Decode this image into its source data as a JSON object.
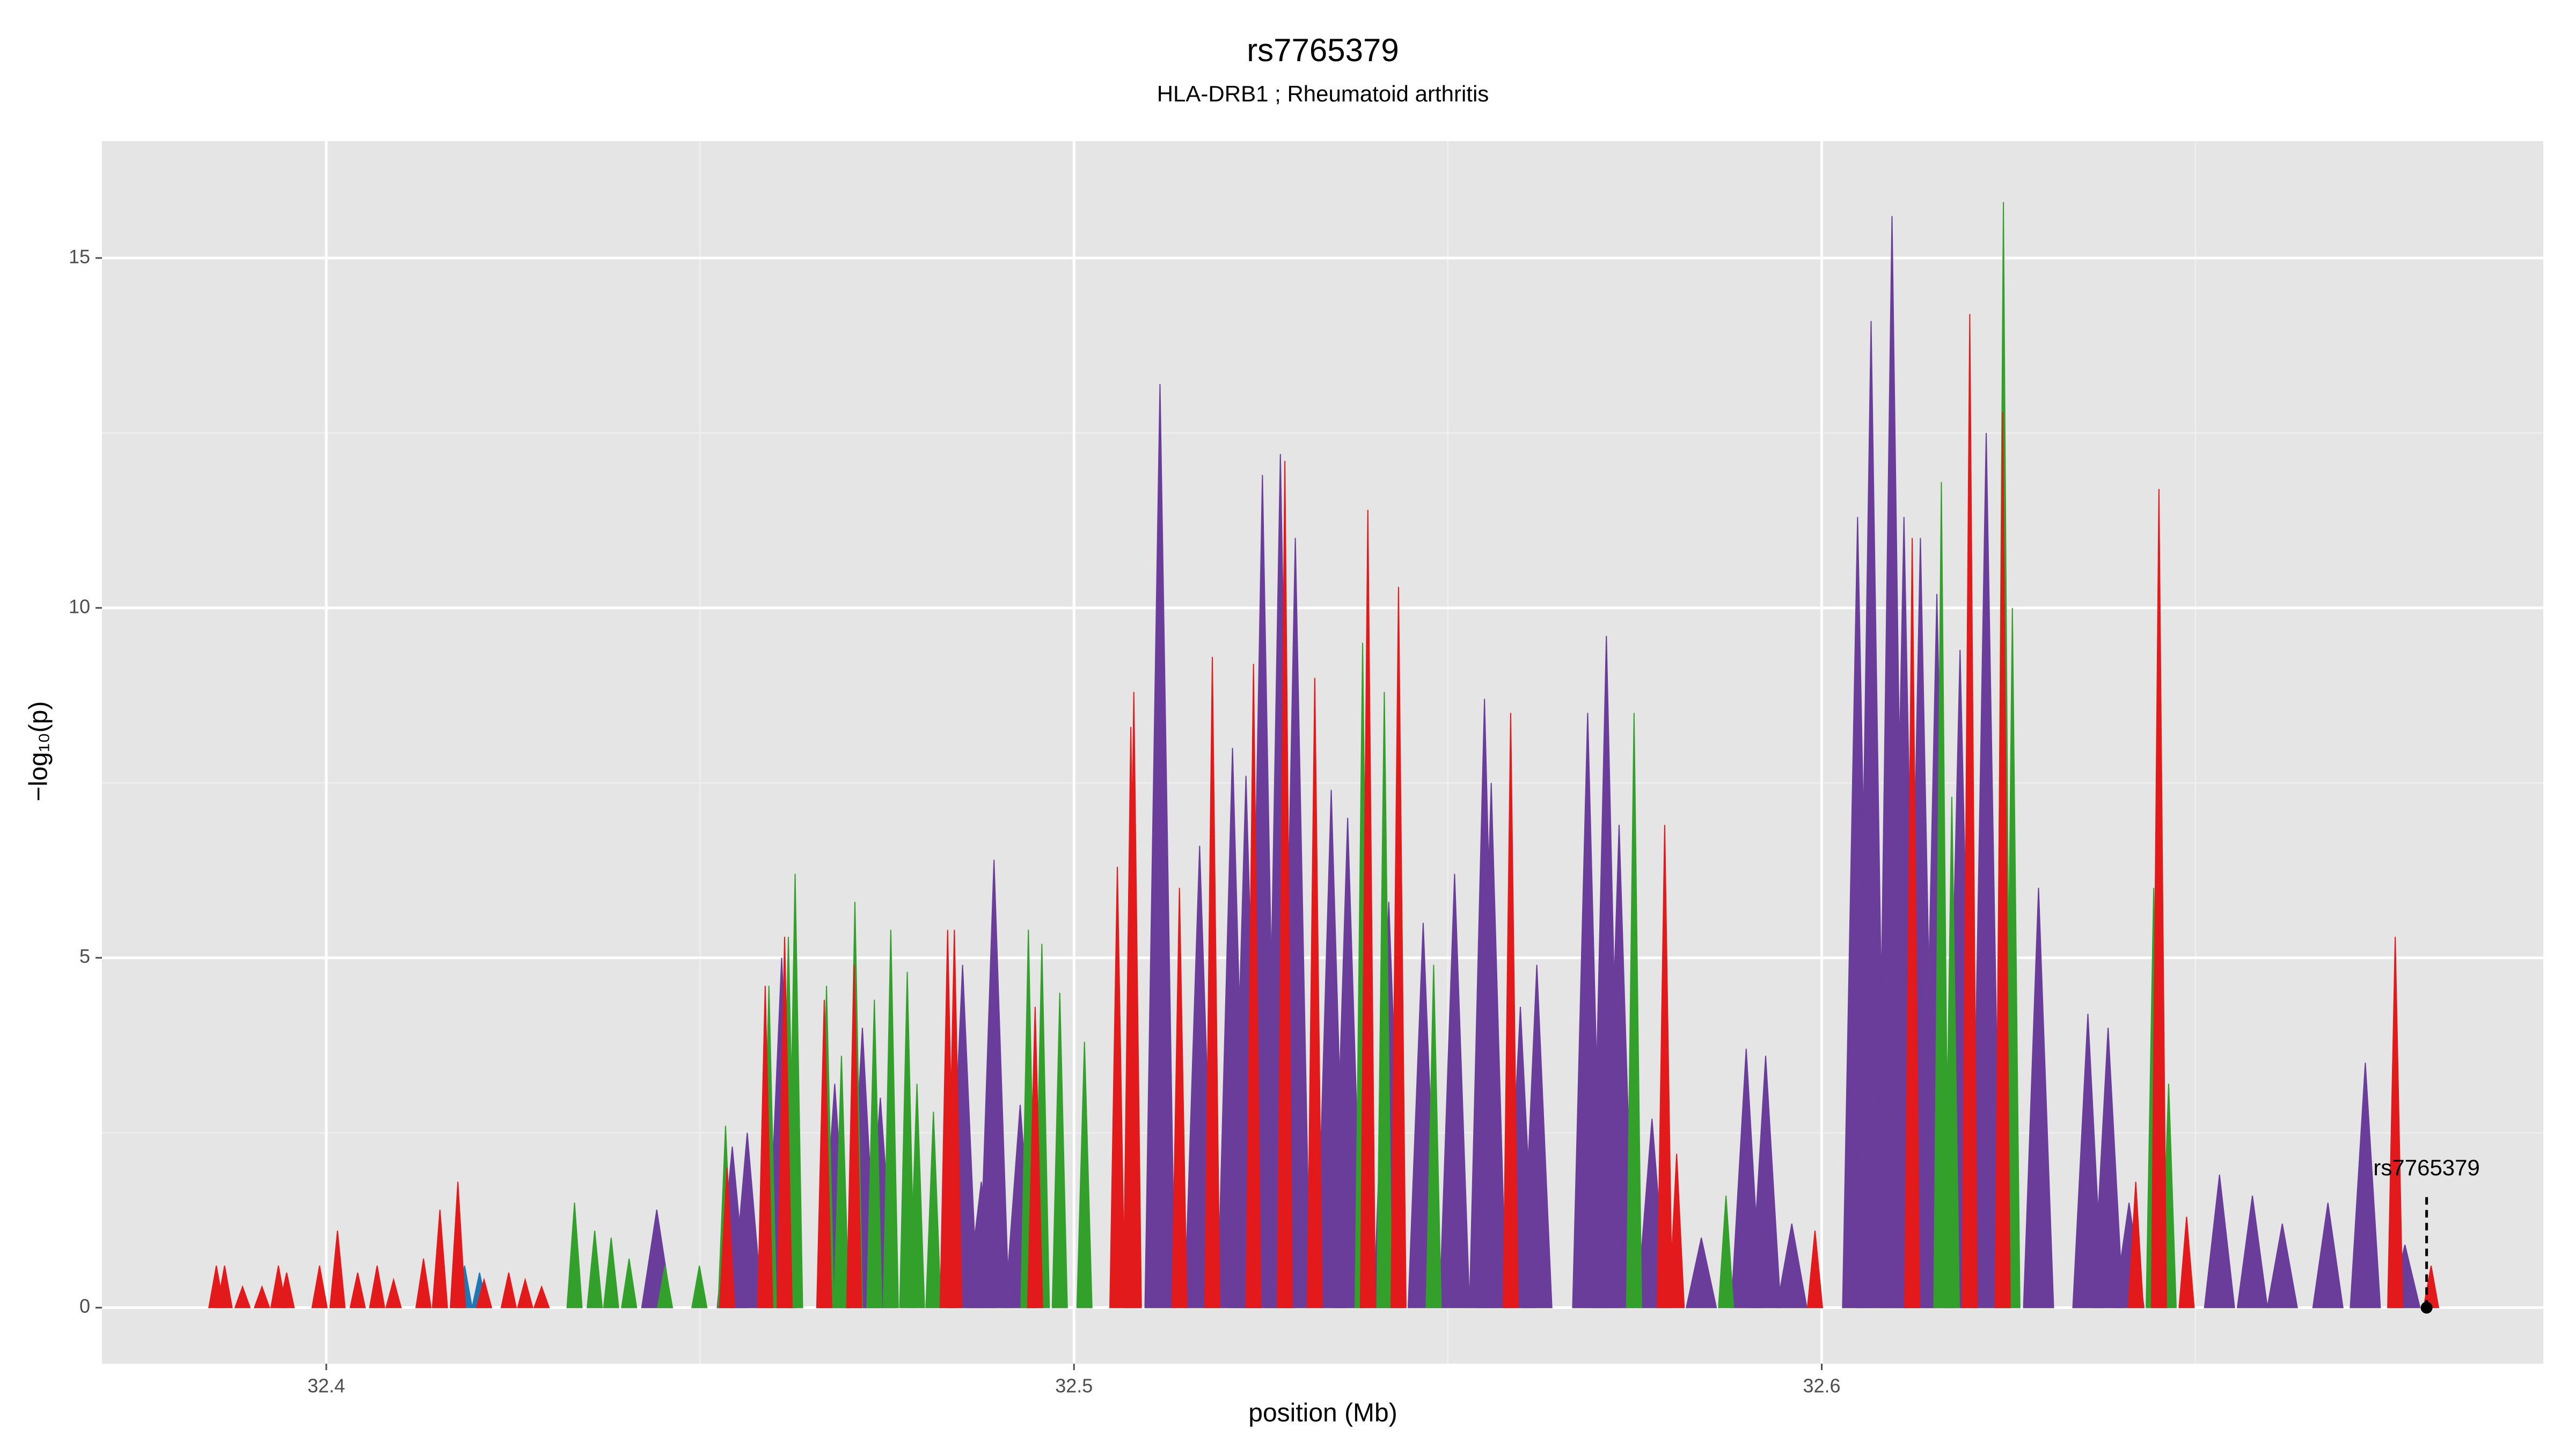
{
  "chart_data": {
    "type": "area",
    "title": "rs7765379",
    "subtitle": "HLA-DRB1 ; Rheumatoid arthritis",
    "xlabel": "position (Mb)",
    "ylabel": "−log₁₀(p)",
    "xlim": [
      32.37,
      32.6965
    ],
    "ylim": [
      -0.8,
      16.67
    ],
    "xticks": [
      32.4,
      32.5,
      32.6
    ],
    "yticks": [
      0,
      5,
      10,
      15
    ],
    "xminorticks": [
      32.45,
      32.55,
      32.65
    ],
    "yminorticks": [
      2.5,
      7.5,
      12.5
    ],
    "grid": true,
    "series": [
      {
        "color": "#6a3d9a",
        "x": [
          32.4442,
          32.4543,
          32.4563,
          32.4609,
          32.468,
          32.4717,
          32.4741,
          32.4851,
          32.4876,
          32.4893,
          32.4928,
          32.5115,
          32.5168,
          32.5212,
          32.523,
          32.5252,
          32.5276,
          32.5296,
          32.5344,
          32.5366,
          32.5421,
          32.5467,
          32.5509,
          32.5549,
          32.5558,
          32.5597,
          32.5619,
          32.5687,
          32.5712,
          32.5729,
          32.5773,
          32.5839,
          32.5899,
          32.5925,
          32.596,
          32.6048,
          32.6066,
          32.6094,
          32.611,
          32.6132,
          32.6154,
          32.6185,
          32.622,
          32.629,
          32.6356,
          32.6383,
          32.6411,
          32.6532,
          32.6576,
          32.6616,
          32.6677,
          32.6727,
          32.678
        ],
        "values": [
          1.4,
          2.3,
          2.5,
          5.0,
          3.2,
          4.0,
          3.0,
          4.9,
          1.8,
          6.4,
          2.9,
          13.2,
          6.6,
          8.0,
          7.6,
          11.9,
          12.2,
          11.0,
          7.4,
          7.0,
          5.8,
          5.5,
          6.2,
          8.7,
          7.5,
          4.3,
          4.9,
          8.5,
          9.6,
          6.9,
          2.7,
          1.0,
          3.7,
          3.6,
          1.2,
          11.3,
          14.1,
          15.6,
          11.3,
          11.0,
          10.2,
          9.4,
          12.5,
          6.0,
          4.2,
          4.0,
          1.5,
          1.9,
          1.6,
          1.2,
          1.5,
          3.5,
          0.9
        ]
      },
      {
        "color": "#33a02c",
        "x": [
          32.4332,
          32.4359,
          32.4381,
          32.4405,
          32.4453,
          32.4499,
          32.4534,
          32.4592,
          32.4618,
          32.4627,
          32.4669,
          32.4689,
          32.4707,
          32.4733,
          32.4755,
          32.4777,
          32.479,
          32.4812,
          32.4939,
          32.4957,
          32.4981,
          32.5014,
          32.5386,
          32.5415,
          32.5481,
          32.5749,
          32.5872,
          32.616,
          32.6174,
          32.6243,
          32.6255,
          32.6444,
          32.6464
        ],
        "values": [
          1.5,
          1.1,
          1.0,
          0.7,
          0.6,
          0.6,
          2.6,
          4.6,
          5.3,
          6.2,
          4.6,
          3.6,
          5.8,
          4.4,
          5.4,
          4.8,
          3.2,
          2.8,
          5.4,
          5.2,
          4.5,
          3.8,
          9.5,
          8.8,
          4.9,
          8.5,
          1.6,
          11.8,
          7.3,
          15.8,
          10.0,
          6.0,
          3.2
        ]
      },
      {
        "color": "#1f78b4",
        "x": [
          32.4185,
          32.4205
        ],
        "values": [
          0.6,
          0.5
        ]
      },
      {
        "color": "#e31a1c",
        "x": [
          32.3853,
          32.3864,
          32.3888,
          32.3914,
          32.3936,
          32.3947,
          32.3991,
          32.4015,
          32.4042,
          32.4068,
          32.409,
          32.413,
          32.4152,
          32.4176,
          32.4211,
          32.4244,
          32.4266,
          32.4288,
          32.4536,
          32.4587,
          32.4613,
          32.4666,
          32.4706,
          32.4831,
          32.484,
          32.4948,
          32.5058,
          32.5076,
          32.508,
          32.5141,
          32.5185,
          32.524,
          32.5282,
          32.5322,
          32.5393,
          32.5434,
          32.5584,
          32.579,
          32.5806,
          32.5991,
          32.6121,
          32.6198,
          32.6242,
          32.642,
          32.6451,
          32.6488,
          32.6767,
          32.6815
        ],
        "values": [
          0.6,
          0.6,
          0.3,
          0.3,
          0.6,
          0.5,
          0.6,
          1.1,
          0.5,
          0.6,
          0.4,
          0.7,
          1.4,
          1.8,
          0.4,
          0.5,
          0.4,
          0.3,
          2.0,
          4.6,
          5.3,
          4.4,
          4.9,
          5.4,
          5.4,
          4.3,
          6.3,
          8.3,
          8.8,
          6.0,
          9.3,
          9.2,
          12.1,
          9.0,
          11.4,
          10.3,
          8.5,
          6.9,
          2.2,
          1.1,
          11.0,
          14.2,
          12.8,
          1.8,
          11.7,
          1.3,
          5.3,
          0.6
        ]
      }
    ],
    "annotation": {
      "text": "rs7765379",
      "x": 32.6809,
      "y": 0
    }
  }
}
